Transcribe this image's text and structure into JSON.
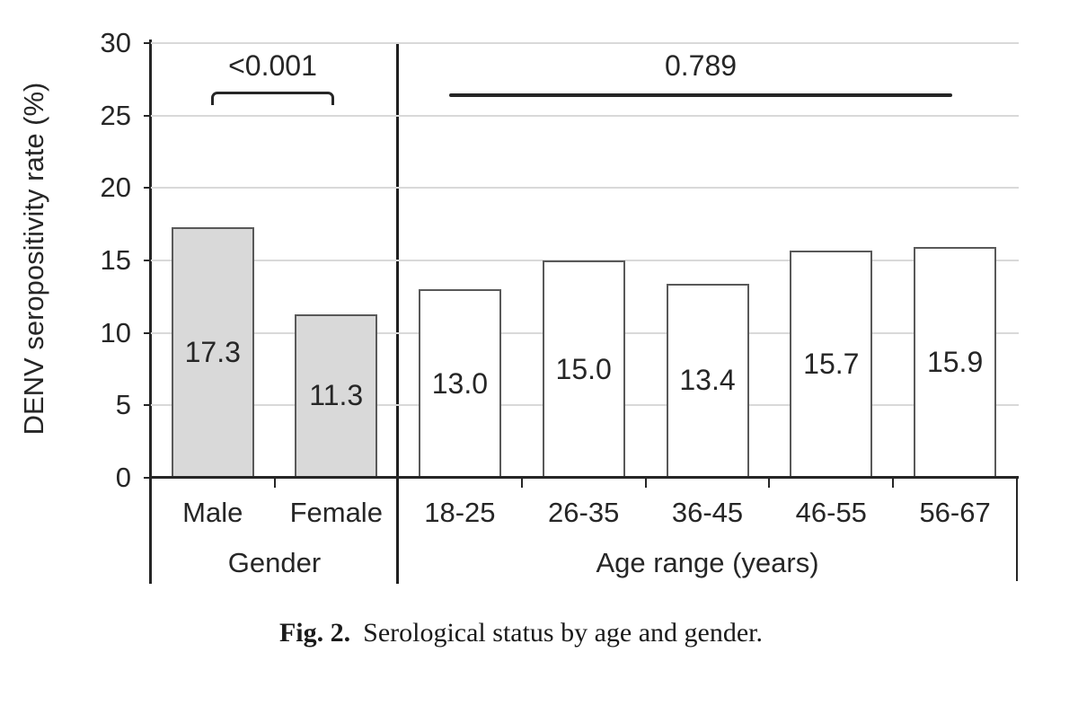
{
  "figure": {
    "caption_prefix": "Fig. 2.",
    "caption_text": "Serological status by age and gender."
  },
  "chart_data": {
    "type": "bar",
    "title": "",
    "xlabel": "",
    "ylabel": "DENV seropositivity rate (%)",
    "ylim": [
      0,
      30
    ],
    "y_tick_labels": [
      "0",
      "5",
      "10",
      "15",
      "20",
      "25",
      "30"
    ],
    "grid": true,
    "legend": "none",
    "groups": [
      {
        "label": "Gender",
        "p_value": "<0.001",
        "bar_fill": "#d9d9d9",
        "categories": [
          "Male",
          "Female"
        ],
        "values": [
          17.3,
          11.3
        ],
        "value_labels": [
          "17.3",
          "11.3"
        ]
      },
      {
        "label": "Age range (years)",
        "p_value": "0.789",
        "bar_fill": "#ffffff",
        "categories": [
          "18-25",
          "26-35",
          "36-45",
          "46-55",
          "56-67"
        ],
        "values": [
          13.0,
          15.0,
          13.4,
          15.7,
          15.9
        ],
        "value_labels": [
          "13.0",
          "15.0",
          "13.4",
          "15.7",
          "15.9"
        ]
      }
    ],
    "colors": {
      "bar_border": "#595959",
      "gridline": "#d9d9d9",
      "axis": "#262626",
      "text": "#262626"
    }
  }
}
